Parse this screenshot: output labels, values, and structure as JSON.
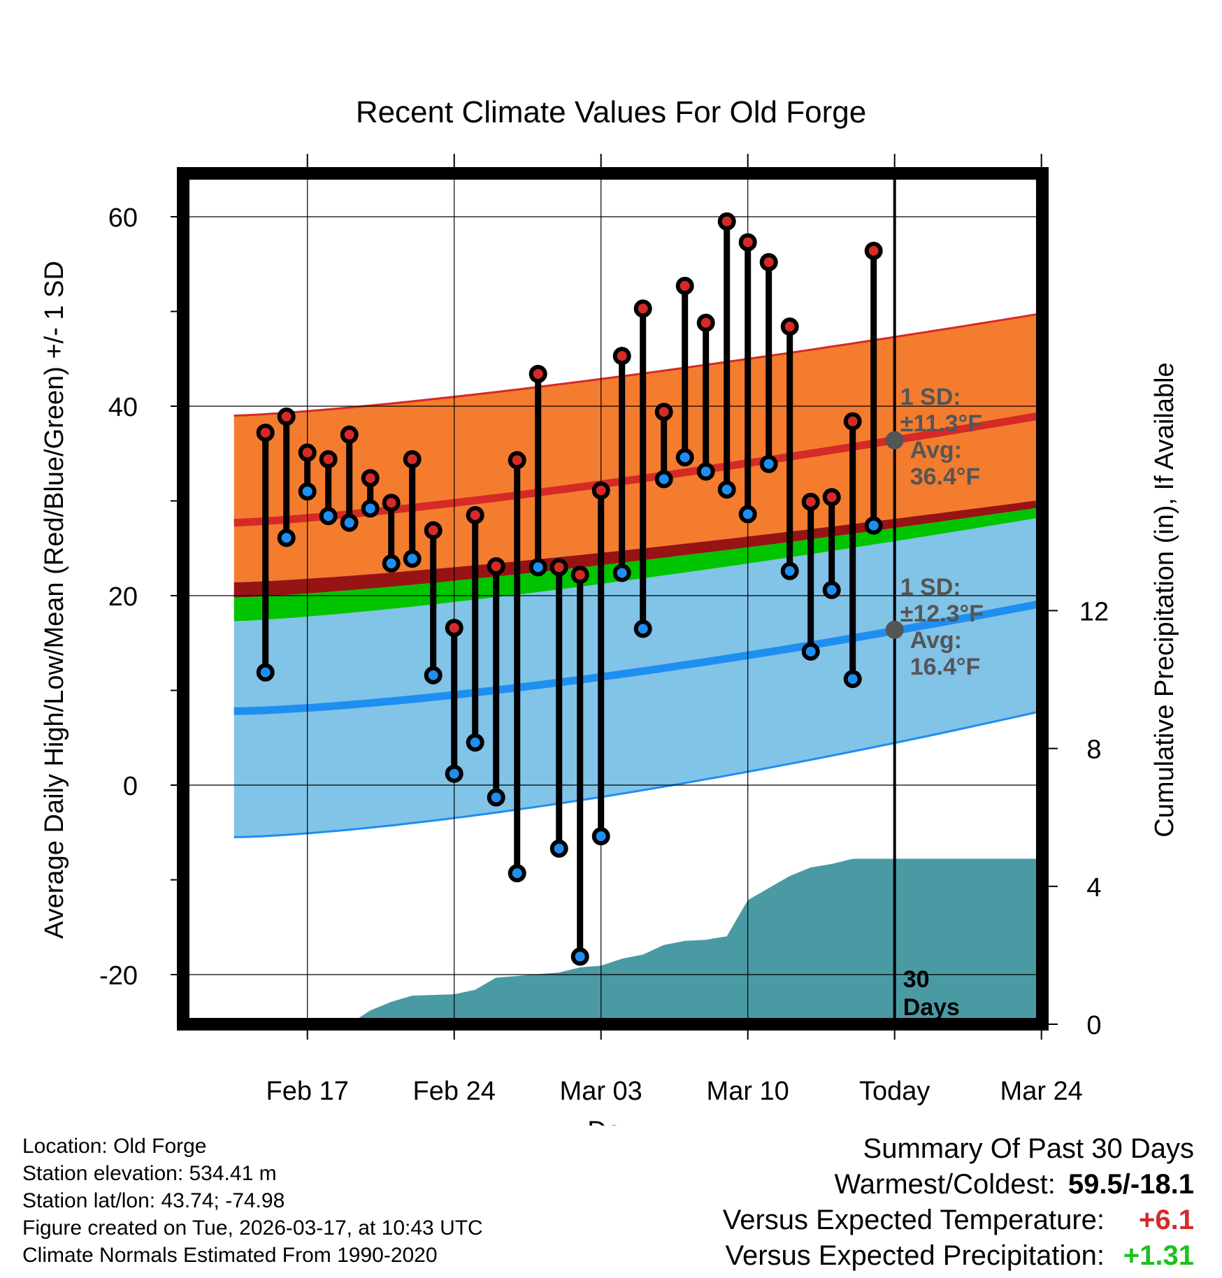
{
  "title": "Recent Climate Values For Old Forge",
  "chart_data": {
    "type": "line",
    "title": "Recent Climate Values For Old Forge",
    "xlabel": "Day",
    "ylabel": "Average Daily High/Low/Mean (Red/Blue/Green) +/- 1 SD",
    "y2label": "Cumulative Precipitation (in), If Available",
    "ylim": [
      -26,
      66
    ],
    "y2lim": [
      0,
      31.5
    ],
    "xlim": [
      -0.5,
      41.3
    ],
    "yticks": [
      "60",
      "40",
      "20",
      "0",
      "-20"
    ],
    "y2ticks": [
      "12",
      "8",
      "4",
      "0"
    ],
    "xticks": [
      {
        "day": 3,
        "label": "Feb 17"
      },
      {
        "day": 10,
        "label": "Feb 24"
      },
      {
        "day": 17,
        "label": "Mar 03"
      },
      {
        "day": 24,
        "label": "Mar 10"
      },
      {
        "day": 31,
        "label": "Today"
      },
      {
        "day": 38,
        "label": "Mar 24"
      }
    ],
    "grid": true,
    "days": [
      1,
      2,
      3,
      4,
      5,
      6,
      7,
      8,
      9,
      10,
      11,
      12,
      13,
      14,
      15,
      16,
      17,
      18,
      19,
      20,
      21,
      22,
      23,
      24,
      25,
      26,
      27,
      28,
      29,
      30
    ],
    "highs": [
      37.2,
      38.9,
      35.1,
      34.4,
      37.0,
      32.4,
      29.8,
      34.4,
      26.9,
      16.6,
      28.5,
      23.1,
      34.3,
      43.4,
      23.0,
      22.2,
      31.1,
      45.3,
      50.3,
      39.4,
      52.7,
      48.8,
      59.5,
      57.3,
      55.2,
      48.4,
      29.9,
      30.4,
      38.4,
      56.4
    ],
    "lows": [
      11.9,
      26.1,
      31.0,
      28.4,
      27.7,
      29.2,
      23.4,
      23.9,
      11.6,
      1.2,
      4.5,
      -1.3,
      -9.3,
      23.0,
      -6.7,
      -18.1,
      -5.4,
      22.4,
      16.5,
      32.3,
      34.6,
      33.1,
      31.2,
      28.6,
      33.9,
      22.6,
      14.1,
      20.6,
      11.2,
      27.4
    ],
    "normal_high": {
      "start": 27.7,
      "end": 40.3
    },
    "normal_high_upper": {
      "start": 39.0,
      "end": 51.0
    },
    "normal_high_lower": {
      "start": 21.4,
      "end": 31.1
    },
    "normal_mean": {
      "start": 19.8,
      "end": 30.4
    },
    "normal_low": {
      "start": 7.8,
      "end": 20.6
    },
    "normal_low_upper": {
      "start": 17.3,
      "end": 29.5
    },
    "normal_low_lower": {
      "start": -5.5,
      "end": 9.5
    },
    "precip_cumulative": [
      0,
      0,
      0,
      0,
      0,
      0,
      0.4,
      0.65,
      0.83,
      0.85,
      0.87,
      1.0,
      1.35,
      1.4,
      1.45,
      1.5,
      1.65,
      1.7,
      1.9,
      2.02,
      2.3,
      2.42,
      2.45,
      2.55,
      3.6,
      3.95,
      4.3,
      4.55,
      4.65,
      4.8
    ],
    "precip_days": [
      -0.5,
      1,
      2,
      3,
      4,
      5,
      6,
      7,
      8,
      9,
      10,
      11,
      12,
      13,
      14,
      15,
      16,
      17,
      18,
      19,
      20,
      21,
      22,
      23,
      24,
      25,
      26,
      27,
      28,
      29
    ],
    "precip_final": 4.8,
    "high_annotation": {
      "sd": "1 SD:",
      "sd_value": "±11.3°F",
      "avg": "Avg:",
      "avg_value": "36.4°F",
      "value": 36.4
    },
    "low_annotation": {
      "sd": "1 SD:",
      "sd_value": "±12.3°F",
      "avg": "Avg:",
      "avg_value": "16.4°F",
      "value": 16.4
    },
    "today_label_line1": "30",
    "today_label_line2": "Days",
    "colors": {
      "high_band": "#f47c2f",
      "high_line": "#d52a27",
      "low_band": "#82c3e8",
      "low_line": "#1f8ef1",
      "overlap": "#961414",
      "mean": "#00c400",
      "precip": "#4a9aa4",
      "high_dot": "#d52a27",
      "low_dot": "#1f8ef1",
      "annotation": "#555555"
    }
  },
  "info": {
    "location": "Location: Old Forge",
    "elevation": "Station elevation: 534.41 m",
    "latlon": "Station lat/lon: 43.74; -74.98",
    "created": "Figure created on Tue, 2026-03-17, at 10:43 UTC",
    "normals": "Climate Normals Estimated From 1990-2020"
  },
  "summary": {
    "title": "Summary Of Past 30 Days",
    "warm_cold_label": "Warmest/Coldest:",
    "warm_cold_value": "59.5/-18.1",
    "temp_label": "Versus Expected Temperature:",
    "temp_value": "+6.1",
    "temp_color": "#d52a27",
    "precip_label": "Versus Expected Precipitation:",
    "precip_value": "+1.31",
    "precip_color": "#1ec21e"
  }
}
